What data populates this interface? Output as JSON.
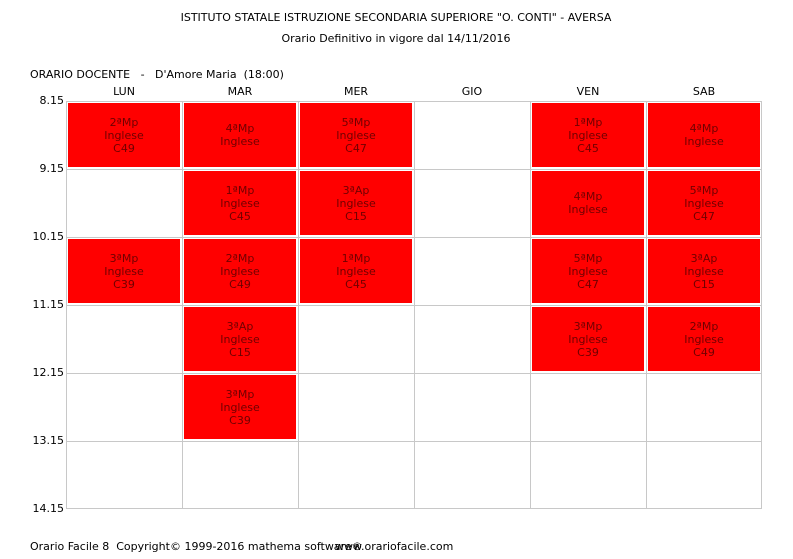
{
  "header": {
    "school": "ISTITUTO STATALE ISTRUZIONE SECONDARIA SUPERIORE \"O. CONTI\" - AVERSA",
    "subtitle": "Orario Definitivo in vigore dal 14/11/2016"
  },
  "title": "ORARIO DOCENTE   -   D'Amore Maria  (18:00)",
  "days": [
    "LUN",
    "MAR",
    "MER",
    "GIO",
    "VEN",
    "SAB"
  ],
  "times": [
    "8.15",
    "9.15",
    "10.15",
    "11.15",
    "12.15",
    "13.15",
    "14.15"
  ],
  "cell_color": "#ff0000",
  "lessons": [
    {
      "day": 0,
      "hour": 0,
      "cls": "2ªMp",
      "subject": "Inglese",
      "room": "C49"
    },
    {
      "day": 1,
      "hour": 0,
      "cls": "4ªMp",
      "subject": "Inglese",
      "room": ""
    },
    {
      "day": 2,
      "hour": 0,
      "cls": "5ªMp",
      "subject": "Inglese",
      "room": "C47"
    },
    {
      "day": 4,
      "hour": 0,
      "cls": "1ªMp",
      "subject": "Inglese",
      "room": "C45"
    },
    {
      "day": 5,
      "hour": 0,
      "cls": "4ªMp",
      "subject": "Inglese",
      "room": ""
    },
    {
      "day": 1,
      "hour": 1,
      "cls": "1ªMp",
      "subject": "Inglese",
      "room": "C45"
    },
    {
      "day": 2,
      "hour": 1,
      "cls": "3ªAp",
      "subject": "Inglese",
      "room": "C15"
    },
    {
      "day": 4,
      "hour": 1,
      "cls": "4ªMp",
      "subject": "Inglese",
      "room": ""
    },
    {
      "day": 5,
      "hour": 1,
      "cls": "5ªMp",
      "subject": "Inglese",
      "room": "C47"
    },
    {
      "day": 0,
      "hour": 2,
      "cls": "3ªMp",
      "subject": "Inglese",
      "room": "C39"
    },
    {
      "day": 1,
      "hour": 2,
      "cls": "2ªMp",
      "subject": "Inglese",
      "room": "C49"
    },
    {
      "day": 2,
      "hour": 2,
      "cls": "1ªMp",
      "subject": "Inglese",
      "room": "C45"
    },
    {
      "day": 4,
      "hour": 2,
      "cls": "5ªMp",
      "subject": "Inglese",
      "room": "C47"
    },
    {
      "day": 5,
      "hour": 2,
      "cls": "3ªAp",
      "subject": "Inglese",
      "room": "C15"
    },
    {
      "day": 1,
      "hour": 3,
      "cls": "3ªAp",
      "subject": "Inglese",
      "room": "C15"
    },
    {
      "day": 4,
      "hour": 3,
      "cls": "3ªMp",
      "subject": "Inglese",
      "room": "C39"
    },
    {
      "day": 5,
      "hour": 3,
      "cls": "2ªMp",
      "subject": "Inglese",
      "room": "C49"
    },
    {
      "day": 1,
      "hour": 4,
      "cls": "3ªMp",
      "subject": "Inglese",
      "room": "C39"
    }
  ],
  "footer": {
    "copyright": "Orario Facile 8  Copyright© 1999-2016 mathema software®",
    "website": "www.orariofacile.com"
  }
}
